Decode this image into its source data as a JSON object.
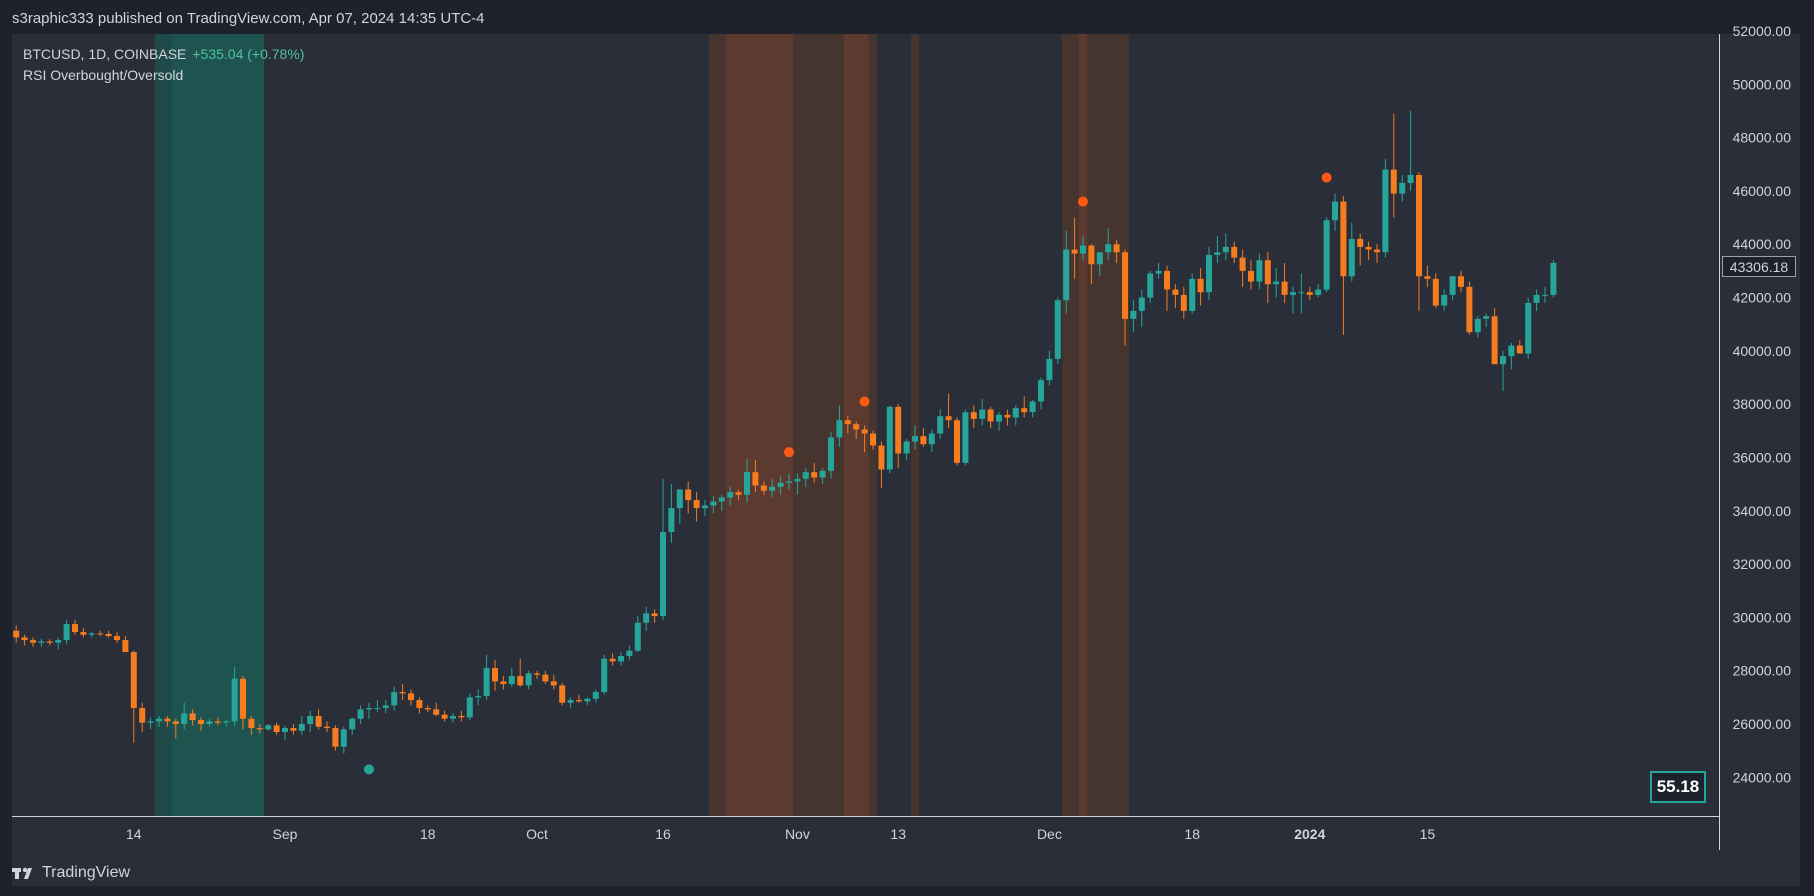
{
  "header": {
    "published": "s3raphic333 published on TradingView.com, Apr 07, 2024 14:35 UTC-4"
  },
  "legend": {
    "symbol": "BTCUSD, 1D, COINBASE",
    "change": "+535.04 (+0.78%)",
    "indicator": "RSI Overbought/Oversold"
  },
  "footer": {
    "brand": "TradingView"
  },
  "colors": {
    "up": "#26a69a",
    "down": "#f57c1f",
    "background": "#2a2e39",
    "oversold_zone": "#1e5350",
    "overbought_zone": "#5c3a2f",
    "overbought_zone_light": "#46352f",
    "dot_overbought": "#ff5a14",
    "dot_oversold": "#26a69a"
  },
  "rsi_value": "55.18",
  "last_price_label": "43306.18",
  "chart_data": {
    "type": "candlestick",
    "title": "BTCUSD, 1D, COINBASE",
    "ylim": [
      22700,
      52000
    ],
    "y_ticks": [
      "24000.00",
      "26000.00",
      "28000.00",
      "30000.00",
      "32000.00",
      "34000.00",
      "36000.00",
      "38000.00",
      "40000.00",
      "42000.00",
      "44000.00",
      "46000.00",
      "48000.00",
      "50000.00",
      "52000.00"
    ],
    "y_tick_values": [
      24000,
      26000,
      28000,
      30000,
      32000,
      34000,
      36000,
      38000,
      40000,
      42000,
      44000,
      46000,
      48000,
      50000,
      52000
    ],
    "x_ticks": [
      {
        "label": "14",
        "date": "2023-08-14",
        "bold": false
      },
      {
        "label": "Sep",
        "date": "2023-09-01",
        "bold": false
      },
      {
        "label": "18",
        "date": "2023-09-18",
        "bold": false
      },
      {
        "label": "Oct",
        "date": "2023-10-01",
        "bold": false
      },
      {
        "label": "16",
        "date": "2023-10-16",
        "bold": false
      },
      {
        "label": "Nov",
        "date": "2023-11-01",
        "bold": false
      },
      {
        "label": "13",
        "date": "2023-11-13",
        "bold": false
      },
      {
        "label": "Dec",
        "date": "2023-12-01",
        "bold": false
      },
      {
        "label": "18",
        "date": "2023-12-18",
        "bold": false
      },
      {
        "label": "2024",
        "date": "2024-01-01",
        "bold": true
      },
      {
        "label": "15",
        "date": "2024-01-15",
        "bold": false
      }
    ],
    "first_date": "2023-07-31",
    "candles": [
      [
        29500,
        29700,
        29050,
        29250
      ],
      [
        29250,
        29350,
        28950,
        29150
      ],
      [
        29150,
        29250,
        28900,
        29050
      ],
      [
        29050,
        29200,
        28900,
        29100
      ],
      [
        29100,
        29180,
        28950,
        29050
      ],
      [
        29050,
        29250,
        28800,
        29150
      ],
      [
        29150,
        29900,
        29000,
        29750
      ],
      [
        29750,
        29900,
        29350,
        29450
      ],
      [
        29450,
        29600,
        29250,
        29350
      ],
      [
        29350,
        29450,
        29250,
        29400
      ],
      [
        29400,
        29500,
        29300,
        29380
      ],
      [
        29380,
        29500,
        29250,
        29300
      ],
      [
        29300,
        29450,
        29050,
        29150
      ],
      [
        29150,
        29300,
        28700,
        28700
      ],
      [
        28700,
        28750,
        25300,
        26600
      ],
      [
        26600,
        26800,
        25700,
        26050
      ],
      [
        26050,
        26250,
        25800,
        26100
      ],
      [
        26100,
        26300,
        25900,
        26200
      ],
      [
        26200,
        26300,
        25900,
        26100
      ],
      [
        26100,
        26200,
        25450,
        26000
      ],
      [
        26000,
        26800,
        25800,
        26400
      ],
      [
        26400,
        26550,
        25950,
        26150
      ],
      [
        26150,
        26250,
        25750,
        26000
      ],
      [
        26000,
        26200,
        25900,
        26100
      ],
      [
        26100,
        26250,
        25950,
        26050
      ],
      [
        26050,
        26150,
        25900,
        26100
      ],
      [
        26100,
        28150,
        25900,
        27700
      ],
      [
        27700,
        27800,
        25800,
        26200
      ],
      [
        26200,
        26300,
        25600,
        25850
      ],
      [
        25850,
        26000,
        25650,
        25800
      ],
      [
        25800,
        26000,
        25750,
        25950
      ],
      [
        25950,
        26050,
        25600,
        25700
      ],
      [
        25700,
        25950,
        25400,
        25850
      ],
      [
        25850,
        26000,
        25600,
        25750
      ],
      [
        25750,
        26300,
        25600,
        26000
      ],
      [
        26000,
        26500,
        25700,
        26300
      ],
      [
        26300,
        26550,
        25800,
        25900
      ],
      [
        25900,
        26100,
        25700,
        25850
      ],
      [
        25850,
        25950,
        25000,
        25150
      ],
      [
        25150,
        25900,
        24900,
        25800
      ],
      [
        25800,
        26250,
        25600,
        26200
      ],
      [
        26200,
        26700,
        26000,
        26550
      ],
      [
        26550,
        26800,
        26200,
        26600
      ],
      [
        26600,
        26900,
        26450,
        26600
      ],
      [
        26600,
        26900,
        26400,
        26700
      ],
      [
        26700,
        27400,
        26500,
        27200
      ],
      [
        27200,
        27500,
        26900,
        27150
      ],
      [
        27150,
        27300,
        26700,
        26900
      ],
      [
        26900,
        27000,
        26400,
        26600
      ],
      [
        26600,
        26700,
        26450,
        26550
      ],
      [
        26550,
        26800,
        26300,
        26350
      ],
      [
        26350,
        26500,
        26100,
        26200
      ],
      [
        26200,
        26400,
        26050,
        26300
      ],
      [
        26300,
        26500,
        26100,
        26250
      ],
      [
        26250,
        27150,
        26150,
        27000
      ],
      [
        27000,
        27300,
        26700,
        27050
      ],
      [
        27050,
        28600,
        26900,
        28100
      ],
      [
        28100,
        28400,
        27250,
        27600
      ],
      [
        27600,
        27800,
        27300,
        27500
      ],
      [
        27500,
        28100,
        27400,
        27800
      ],
      [
        27800,
        28450,
        27400,
        27450
      ],
      [
        27450,
        28000,
        27300,
        27900
      ],
      [
        27900,
        28000,
        27700,
        27850
      ],
      [
        27850,
        28000,
        27500,
        27600
      ],
      [
        27600,
        27850,
        27300,
        27450
      ],
      [
        27450,
        27550,
        26700,
        26800
      ],
      [
        26800,
        27000,
        26600,
        26900
      ],
      [
        26900,
        27100,
        26800,
        26850
      ],
      [
        26850,
        27000,
        26700,
        26950
      ],
      [
        26950,
        27300,
        26800,
        27200
      ],
      [
        27200,
        28600,
        27100,
        28450
      ],
      [
        28450,
        28650,
        28200,
        28350
      ],
      [
        28350,
        28700,
        28200,
        28550
      ],
      [
        28550,
        28950,
        28400,
        28750
      ],
      [
        28750,
        30050,
        28700,
        29800
      ],
      [
        29800,
        30400,
        29500,
        30150
      ],
      [
        30150,
        30300,
        29800,
        30050
      ],
      [
        30050,
        35200,
        29900,
        33200
      ],
      [
        33200,
        35000,
        32800,
        34100
      ],
      [
        34100,
        34600,
        33500,
        34800
      ],
      [
        34800,
        35100,
        33900,
        34400
      ],
      [
        34400,
        34700,
        33600,
        34100
      ],
      [
        34100,
        34400,
        33800,
        34200
      ],
      [
        34200,
        34550,
        33900,
        34350
      ],
      [
        34350,
        34600,
        34000,
        34500
      ],
      [
        34500,
        34900,
        34200,
        34700
      ],
      [
        34700,
        34800,
        34400,
        34600
      ],
      [
        34600,
        35950,
        34300,
        35450
      ],
      [
        35450,
        35900,
        34700,
        34950
      ],
      [
        34950,
        35100,
        34600,
        34750
      ],
      [
        34750,
        35200,
        34500,
        34900
      ],
      [
        34900,
        35300,
        34600,
        35050
      ],
      [
        35050,
        35400,
        34800,
        35100
      ],
      [
        35100,
        35400,
        34600,
        35200
      ],
      [
        35200,
        35600,
        34900,
        35450
      ],
      [
        35450,
        35800,
        35050,
        35250
      ],
      [
        35250,
        35600,
        35000,
        35500
      ],
      [
        35500,
        36950,
        35200,
        36750
      ],
      [
        36750,
        37950,
        36400,
        37400
      ],
      [
        37400,
        37550,
        36900,
        37250
      ],
      [
        37250,
        37350,
        36700,
        37050
      ],
      [
        37050,
        37200,
        36200,
        36900
      ],
      [
        36900,
        37000,
        36300,
        36450
      ],
      [
        36450,
        36600,
        34850,
        35550
      ],
      [
        35550,
        37950,
        35400,
        37900
      ],
      [
        37900,
        38000,
        35600,
        36150
      ],
      [
        36150,
        36700,
        35900,
        36600
      ],
      [
        36600,
        37200,
        36300,
        36800
      ],
      [
        36800,
        37100,
        36400,
        36500
      ],
      [
        36500,
        37050,
        36200,
        36900
      ],
      [
        36900,
        37800,
        36700,
        37550
      ],
      [
        37550,
        38400,
        37100,
        37400
      ],
      [
        37400,
        37500,
        35700,
        35800
      ],
      [
        35800,
        37800,
        35700,
        37700
      ],
      [
        37700,
        37950,
        37100,
        37450
      ],
      [
        37450,
        38200,
        37200,
        37800
      ],
      [
        37800,
        37900,
        37100,
        37350
      ],
      [
        37350,
        37700,
        37000,
        37600
      ],
      [
        37600,
        37800,
        37200,
        37500
      ],
      [
        37500,
        37950,
        37200,
        37850
      ],
      [
        37850,
        38300,
        37500,
        37700
      ],
      [
        37700,
        38150,
        37500,
        38100
      ],
      [
        38100,
        39000,
        37800,
        38900
      ],
      [
        38900,
        40000,
        38700,
        39700
      ],
      [
        39700,
        42000,
        39500,
        41900
      ],
      [
        41900,
        44500,
        41400,
        43800
      ],
      [
        43800,
        45000,
        42700,
        43650
      ],
      [
        43650,
        44300,
        43400,
        43950
      ],
      [
        43950,
        44000,
        42500,
        43250
      ],
      [
        43250,
        43600,
        42800,
        43700
      ],
      [
        43700,
        44600,
        43400,
        44000
      ],
      [
        44000,
        44150,
        43300,
        43700
      ],
      [
        43700,
        43800,
        40200,
        41200
      ],
      [
        41200,
        41900,
        40700,
        41500
      ],
      [
        41500,
        42300,
        40900,
        42000
      ],
      [
        42000,
        43000,
        41800,
        42900
      ],
      [
        42900,
        43300,
        42700,
        43000
      ],
      [
        43000,
        43200,
        41500,
        42300
      ],
      [
        42300,
        42500,
        41600,
        42100
      ],
      [
        42100,
        42400,
        41200,
        41500
      ],
      [
        41500,
        42900,
        41400,
        42700
      ],
      [
        42700,
        43100,
        41700,
        42200
      ],
      [
        42200,
        43900,
        41900,
        43600
      ],
      [
        43600,
        44300,
        43300,
        43700
      ],
      [
        43700,
        44400,
        43400,
        43900
      ],
      [
        43900,
        44100,
        43300,
        43500
      ],
      [
        43500,
        43800,
        42400,
        43000
      ],
      [
        43000,
        43400,
        42300,
        42600
      ],
      [
        42600,
        43650,
        42300,
        43400
      ],
      [
        43400,
        43700,
        41800,
        42500
      ],
      [
        42500,
        43100,
        42000,
        42600
      ],
      [
        42600,
        43300,
        41800,
        42100
      ],
      [
        42100,
        42400,
        41400,
        42200
      ],
      [
        42200,
        42900,
        41400,
        42200
      ],
      [
        42200,
        42400,
        41900,
        42100
      ],
      [
        42100,
        42500,
        42000,
        42300
      ],
      [
        42300,
        45000,
        42200,
        44900
      ],
      [
        44900,
        45900,
        44500,
        45600
      ],
      [
        45600,
        45800,
        40600,
        42800
      ],
      [
        42800,
        44800,
        42600,
        44200
      ],
      [
        44200,
        44400,
        43200,
        43900
      ],
      [
        43900,
        44100,
        43400,
        43800
      ],
      [
        43800,
        44000,
        43300,
        43700
      ],
      [
        43700,
        47200,
        43500,
        46800
      ],
      [
        46800,
        48900,
        45000,
        45900
      ],
      [
        45900,
        46600,
        45600,
        46300
      ],
      [
        46300,
        49000,
        46000,
        46600
      ],
      [
        46600,
        46700,
        41500,
        42800
      ],
      [
        42800,
        43200,
        42400,
        42700
      ],
      [
        42700,
        42900,
        41600,
        41700
      ],
      [
        41700,
        42300,
        41500,
        42100
      ],
      [
        42100,
        42800,
        41900,
        42800
      ],
      [
        42800,
        43000,
        42200,
        42400
      ],
      [
        42400,
        42600,
        40600,
        40700
      ],
      [
        40700,
        41300,
        40500,
        41200
      ],
      [
        41200,
        41400,
        40900,
        41300
      ],
      [
        41300,
        41600,
        39700,
        39500
      ],
      [
        39500,
        40000,
        38500,
        39800
      ],
      [
        39800,
        40300,
        39300,
        40200
      ],
      [
        40200,
        40400,
        39900,
        39900
      ],
      [
        39900,
        42000,
        39700,
        41800
      ],
      [
        41800,
        42300,
        41500,
        42100
      ],
      [
        42100,
        42400,
        41800,
        42100
      ],
      [
        42100,
        43400,
        42000,
        43300
      ]
    ],
    "shaded_ranges": [
      {
        "type": "oversold",
        "start": "2023-08-17",
        "end": "2023-08-29"
      },
      {
        "type": "oversold_strong",
        "start": "2023-08-19",
        "end": "2023-08-29"
      },
      {
        "type": "overbought",
        "start": "2023-10-22",
        "end": "2023-10-31"
      },
      {
        "type": "overbought_strong",
        "start": "2023-10-24",
        "end": "2023-10-31"
      },
      {
        "type": "overbought",
        "start": "2023-11-01",
        "end": "2023-11-06"
      },
      {
        "type": "overbought_strong",
        "start": "2023-11-07",
        "end": "2023-11-09"
      },
      {
        "type": "overbought",
        "start": "2023-11-10",
        "end": "2023-11-10"
      },
      {
        "type": "overbought",
        "start": "2023-11-15",
        "end": "2023-11-15"
      },
      {
        "type": "overbought",
        "start": "2023-12-03",
        "end": "2023-12-10"
      },
      {
        "type": "overbought_strong",
        "start": "2023-12-05",
        "end": "2023-12-05"
      }
    ],
    "signal_dots": [
      {
        "type": "oversold",
        "date": "2023-09-11",
        "price": 24300
      },
      {
        "type": "overbought",
        "date": "2023-10-31",
        "price": 36200
      },
      {
        "type": "overbought",
        "date": "2023-11-09",
        "price": 38100
      },
      {
        "type": "overbought",
        "date": "2023-12-05",
        "price": 45600
      },
      {
        "type": "overbought",
        "date": "2024-01-03",
        "price": 46500
      }
    ]
  }
}
